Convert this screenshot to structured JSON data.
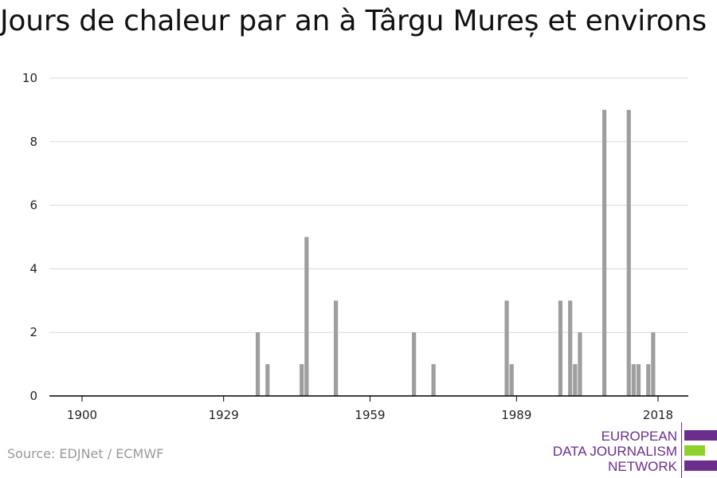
{
  "title": "Jours de chaleur par an à Târgu Mureș et environs",
  "source": "Source: EDJNet / ECMWF",
  "logo": {
    "lines": [
      "EUROPEAN",
      "DATA JOURNALISM",
      "NETWORK"
    ],
    "colors": {
      "purple": "#6b2e8e",
      "green": "#8ed12a"
    }
  },
  "colors": {
    "bar": "#9e9e9e",
    "grid": "#d9d9d9",
    "axis": "#000000"
  },
  "chart_data": {
    "type": "bar",
    "title": "Jours de chaleur par an à Târgu Mureș et environs",
    "xlabel": "",
    "ylabel": "",
    "xlim": [
      1900,
      2018
    ],
    "ylim": [
      0,
      10
    ],
    "x_ticks": [
      1900,
      1929,
      1959,
      1989,
      2018
    ],
    "y_ticks": [
      0,
      2,
      4,
      6,
      8,
      10
    ],
    "grid": true,
    "x": [
      1936,
      1938,
      1945,
      1946,
      1952,
      1968,
      1972,
      1987,
      1988,
      1998,
      2000,
      2001,
      2002,
      2007,
      2012,
      2013,
      2014,
      2016,
      2017
    ],
    "values": [
      2,
      1,
      1,
      5,
      3,
      2,
      1,
      3,
      1,
      3,
      3,
      1,
      2,
      9,
      9,
      1,
      1,
      1,
      2
    ]
  }
}
